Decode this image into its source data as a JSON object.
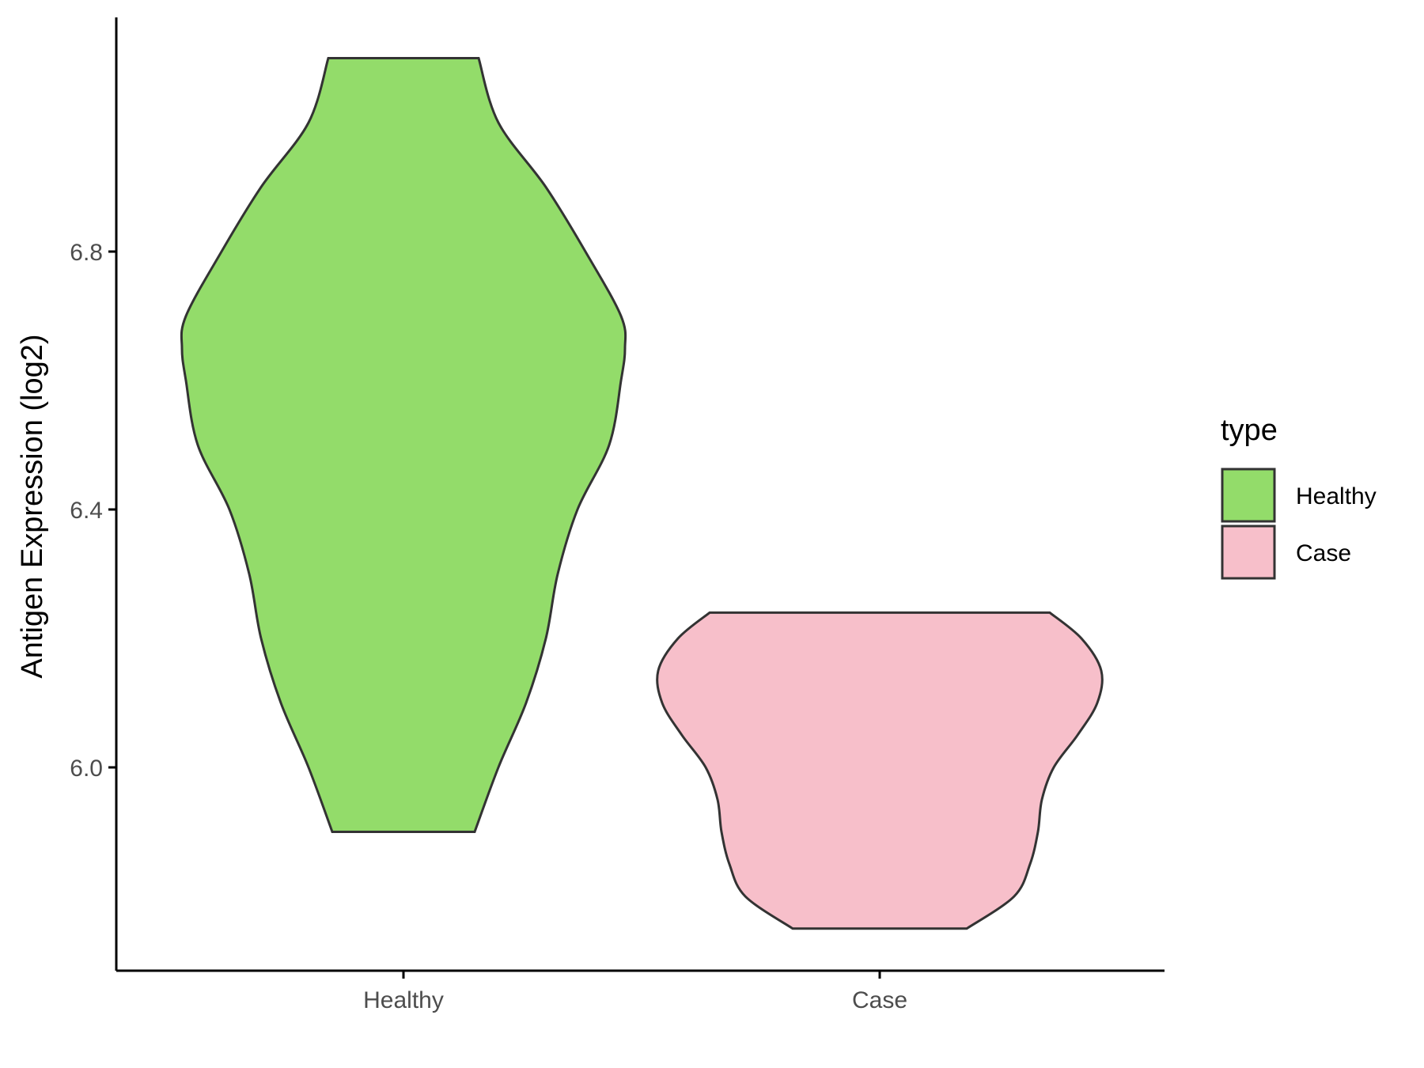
{
  "chart_data": {
    "type": "violin",
    "title": "",
    "xlabel": "",
    "ylabel": "Antigen Expression (log2)",
    "ylim": [
      5.69,
      7.17
    ],
    "yticks": [
      "6.0",
      "6.4",
      "6.8"
    ],
    "grid": false,
    "legend": {
      "title": "type",
      "position": "right"
    },
    "categories": [
      "Healthy",
      "Case"
    ],
    "series": [
      {
        "name": "Healthy",
        "color": "#93dc6a",
        "min": 5.9,
        "max": 7.1,
        "density_profile": [
          [
            5.9,
            0.18
          ],
          [
            6.0,
            0.24
          ],
          [
            6.1,
            0.31
          ],
          [
            6.2,
            0.36
          ],
          [
            6.3,
            0.39
          ],
          [
            6.4,
            0.44
          ],
          [
            6.5,
            0.52
          ],
          [
            6.6,
            0.55
          ],
          [
            6.65,
            0.56
          ],
          [
            6.7,
            0.55
          ],
          [
            6.8,
            0.46
          ],
          [
            6.9,
            0.36
          ],
          [
            7.0,
            0.24
          ],
          [
            7.1,
            0.19
          ]
        ]
      },
      {
        "name": "Case",
        "color": "#f7bfca",
        "min": 5.75,
        "max": 6.24,
        "density_profile": [
          [
            5.75,
            0.22
          ],
          [
            5.8,
            0.34
          ],
          [
            5.85,
            0.38
          ],
          [
            5.9,
            0.4
          ],
          [
            5.95,
            0.41
          ],
          [
            6.0,
            0.44
          ],
          [
            6.05,
            0.5
          ],
          [
            6.1,
            0.55
          ],
          [
            6.15,
            0.56
          ],
          [
            6.2,
            0.51
          ],
          [
            6.24,
            0.43
          ]
        ]
      }
    ]
  }
}
